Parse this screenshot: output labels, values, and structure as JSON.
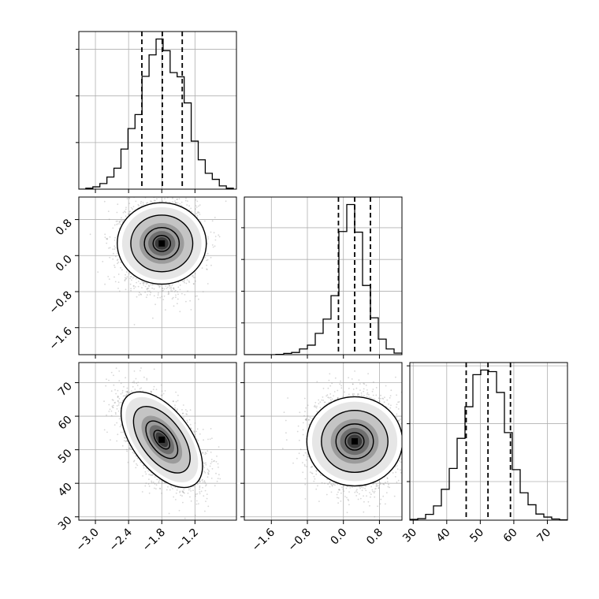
{
  "chart_data": {
    "type": "corner",
    "parameters": 3,
    "colors": {
      "line": "#000000",
      "grid": "#b0b0b0",
      "density": "#000000",
      "background": "#ffffff"
    },
    "grid": true,
    "axes": {
      "p0": {
        "range": [
          -3.3,
          -0.45
        ],
        "ticks": [
          -3.0,
          -2.4,
          -1.8,
          -1.2
        ],
        "tick_labels": [
          "−3.0",
          "−2.4",
          "−1.8",
          "−1.2"
        ]
      },
      "p1": {
        "range": [
          -2.2,
          1.3
        ],
        "ticks": [
          -1.6,
          -0.8,
          0.0,
          0.8
        ],
        "tick_labels": [
          "−1.6",
          "−0.8",
          "0.0",
          "0.8"
        ]
      },
      "p2": {
        "range": [
          29,
          76
        ],
        "ticks": [
          30,
          40,
          50,
          60,
          70
        ],
        "tick_labels": [
          "30",
          "40",
          "50",
          "60",
          "70"
        ]
      }
    },
    "histograms": [
      {
        "param": "p0",
        "bin_edges": [
          -3.3,
          -3.173,
          -3.046,
          -2.919,
          -2.792,
          -2.665,
          -2.538,
          -2.411,
          -2.284,
          -2.157,
          -2.03,
          -1.903,
          -1.776,
          -1.649,
          -1.522,
          -1.395,
          -1.268,
          -1.141,
          -1.014,
          -0.887,
          -0.76,
          -0.633,
          -0.506
        ],
        "counts": [
          0,
          2,
          5,
          12,
          26,
          45,
          86,
          130,
          160,
          242,
          288,
          322,
          297,
          250,
          241,
          185,
          103,
          63,
          34,
          21,
          7,
          2
        ],
        "quantiles": [
          -2.16,
          -1.79,
          -1.43
        ],
        "yticks": [
          100,
          200,
          300
        ]
      },
      {
        "param": "p1",
        "bin_edges": [
          -2.2,
          -2.025,
          -1.85,
          -1.675,
          -1.5,
          -1.325,
          -1.15,
          -0.975,
          -0.8,
          -0.625,
          -0.45,
          -0.275,
          -0.1,
          0.075,
          0.25,
          0.425,
          0.6,
          0.775,
          0.95,
          1.125,
          1.3
        ],
        "counts": [
          0,
          0,
          0,
          0,
          1,
          4,
          7,
          18,
          30,
          67,
          112,
          186,
          388,
          473,
          386,
          218,
          116,
          49,
          18,
          5
        ],
        "quantiles": [
          -0.11,
          0.25,
          0.6
        ],
        "yticks": [
          100,
          200,
          300,
          400
        ]
      },
      {
        "param": "p2",
        "bin_edges": [
          29,
          31.35,
          33.7,
          36.05,
          38.4,
          40.75,
          43.1,
          45.45,
          47.8,
          50.15,
          52.5,
          54.85,
          57.2,
          59.55,
          61.9,
          64.25,
          66.6,
          68.95,
          71.3,
          73.65,
          76
        ],
        "counts": [
          2,
          4,
          15,
          37,
          80,
          134,
          212,
          294,
          377,
          389,
          385,
          331,
          227,
          131,
          71,
          40,
          16,
          8,
          3,
          1
        ],
        "quantiles": [
          45.8,
          52.3,
          59.0
        ],
        "yticks": [
          100,
          250,
          400
        ]
      }
    ],
    "joint": [
      {
        "x": "p0",
        "y": "p1",
        "center": [
          -1.8,
          0.27
        ],
        "sd": [
          0.32,
          0.43
        ],
        "corr": 0.0,
        "points": 5000
      },
      {
        "x": "p0",
        "y": "p2",
        "center": [
          -1.8,
          53
        ],
        "sd": [
          0.32,
          6.2
        ],
        "corr": -0.55,
        "points": 5000
      },
      {
        "x": "p1",
        "y": "p2",
        "center": [
          0.25,
          52.5
        ],
        "sd": [
          0.43,
          6.2
        ],
        "corr": 0.0,
        "points": 5000
      }
    ]
  }
}
